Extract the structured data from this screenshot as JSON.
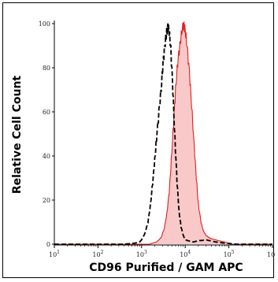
{
  "chart_data": {
    "type": "area",
    "xlabel": "CD96 Purified / GAM APC",
    "ylabel": "Relative Cell Count",
    "x_scale": "log",
    "xlim": [
      10,
      1000000
    ],
    "ylim": [
      0,
      100
    ],
    "x_ticks": [
      {
        "base": "10",
        "exp": "1"
      },
      {
        "base": "10",
        "exp": "2"
      },
      {
        "base": "10",
        "exp": "3"
      },
      {
        "base": "10",
        "exp": "4"
      },
      {
        "base": "10",
        "exp": "5"
      },
      {
        "base": "10",
        "exp": "6"
      }
    ],
    "y_ticks": [
      "0",
      "20",
      "40",
      "60",
      "80",
      "100"
    ],
    "grid": false,
    "legend": "none",
    "series": [
      {
        "style": "dashed",
        "color": "#000000",
        "x": [
          10,
          400,
          700,
          900,
          1000,
          1200,
          1400,
          1600,
          1800,
          2000,
          2200,
          2500,
          2800,
          3100,
          3400,
          3700,
          4000,
          4300,
          4700,
          5200,
          5800,
          6500,
          7200,
          8000,
          9000,
          10000,
          12000,
          15000,
          20000,
          30000,
          50000,
          80000,
          150000,
          1000000
        ],
        "y": [
          0,
          0,
          0.5,
          1,
          2,
          5,
          10,
          18,
          28,
          38,
          48,
          60,
          70,
          82,
          90,
          95,
          99,
          96,
          88,
          70,
          48,
          28,
          15,
          8,
          4,
          2,
          1.5,
          1,
          1.5,
          2,
          1,
          0.5,
          0,
          0
        ]
      },
      {
        "style": "solid-filled",
        "color": "#e0201c",
        "fill": "#f9c9c9",
        "x": [
          10,
          1500,
          2200,
          2800,
          3300,
          3800,
          4300,
          4800,
          5400,
          6000,
          6700,
          7500,
          8300,
          9200,
          10000,
          11000,
          12500,
          14000,
          16000,
          18000,
          20000,
          23000,
          26000,
          30000,
          35000,
          40000,
          50000,
          60000,
          80000,
          120000,
          1000000
        ],
        "y": [
          0,
          0,
          1,
          3,
          7,
          14,
          24,
          38,
          55,
          70,
          82,
          90,
          96,
          100,
          97,
          90,
          78,
          63,
          45,
          30,
          18,
          10,
          6,
          4,
          3,
          2.5,
          2,
          1.5,
          1,
          0,
          0
        ]
      }
    ]
  }
}
